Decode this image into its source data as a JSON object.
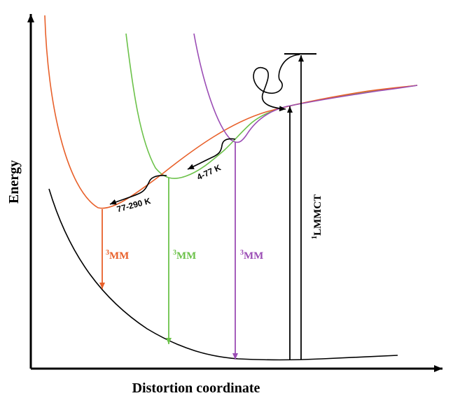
{
  "axes": {
    "x_label": "Distortion coordinate",
    "y_label": "Energy"
  },
  "colors": {
    "ground": "#000000",
    "orange": "#E8602A",
    "green": "#6CC24A",
    "purple": "#9B4DB5"
  },
  "transitions": {
    "mm_orange": {
      "sup": "3",
      "main": "MM"
    },
    "mm_green": {
      "sup": "3",
      "main": "MM"
    },
    "mm_purple": {
      "sup": "3",
      "main": "MM"
    },
    "lmmct": {
      "sup": "1",
      "main": "LMMCT"
    }
  },
  "temperature_ranges": {
    "low": "77-290 K",
    "high": "4-77 K"
  }
}
